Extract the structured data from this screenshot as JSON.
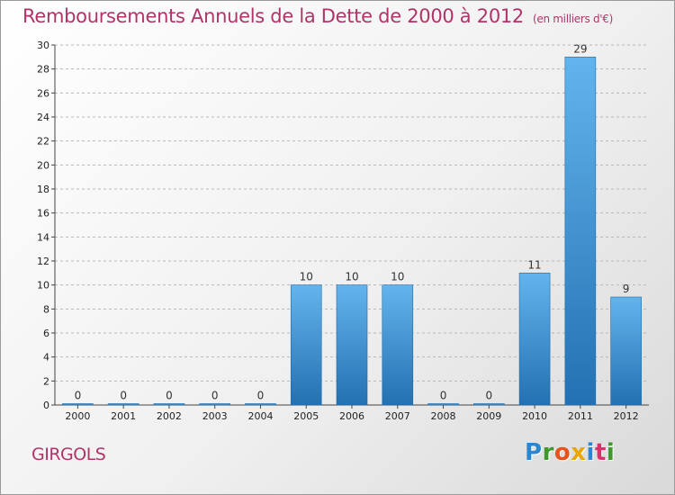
{
  "header": {
    "title": "Remboursements Annuels de la Dette de 2000 à 2012",
    "unit": "(en milliers d'€)"
  },
  "footer": {
    "place": "GIRGOLS",
    "logo_letters": [
      "P",
      "r",
      "o",
      "x",
      "i",
      "t",
      "i"
    ],
    "logo_colors": [
      "#2a86d0",
      "#3c9a2c",
      "#e8531c",
      "#e8a700",
      "#2a86d0",
      "#d6336c",
      "#3c9a2c"
    ]
  },
  "colors": {
    "title": "#b0346a",
    "bar_light": "#63b4ec",
    "bar_dark": "#2470b2",
    "grid": "#b8b8b8"
  },
  "chart_data": {
    "type": "bar",
    "title": "Remboursements Annuels de la Dette de 2000 à 2012",
    "xlabel": "",
    "ylabel": "",
    "categories": [
      "2000",
      "2001",
      "2002",
      "2003",
      "2004",
      "2005",
      "2006",
      "2007",
      "2008",
      "2009",
      "2010",
      "2011",
      "2012"
    ],
    "values": [
      0,
      0,
      0,
      0,
      0,
      10,
      10,
      10,
      0,
      0,
      11,
      29,
      9
    ],
    "ylim": [
      0,
      30
    ],
    "yticks": [
      0,
      2,
      4,
      6,
      8,
      10,
      12,
      14,
      16,
      18,
      20,
      22,
      24,
      26,
      28,
      30
    ],
    "grid": true
  }
}
